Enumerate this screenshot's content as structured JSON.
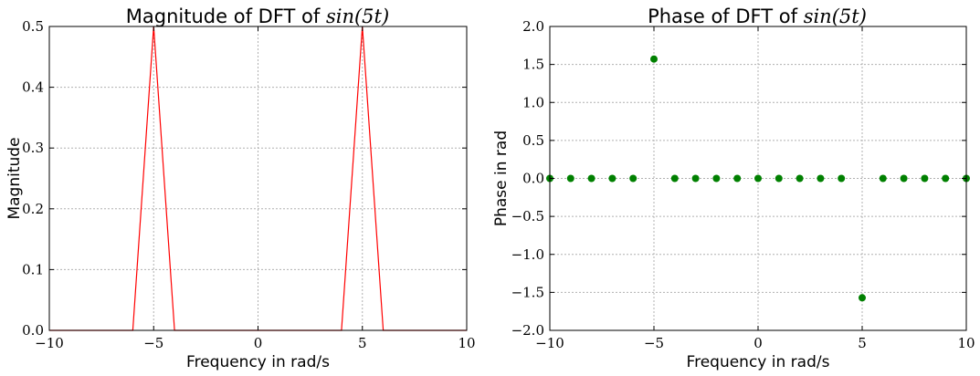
{
  "chart_data": [
    {
      "type": "line",
      "title": "Magnitude of DFT of",
      "title_math": "sin(5t)",
      "xlabel": "Frequency in rad/s",
      "ylabel": "Magnitude",
      "xlim": [
        -10,
        10
      ],
      "ylim": [
        0,
        0.5
      ],
      "xticks": [
        -10,
        -5,
        0,
        5,
        10
      ],
      "yticks": [
        0.0,
        0.1,
        0.2,
        0.3,
        0.4,
        0.5
      ],
      "xtick_labels": [
        "−10",
        "−5",
        "0",
        "5",
        "10"
      ],
      "ytick_labels": [
        "0.0",
        "0.1",
        "0.2",
        "0.3",
        "0.4",
        "0.5"
      ],
      "grid": true,
      "color": "#ff0000",
      "x": [
        -10,
        -9,
        -8,
        -7,
        -6,
        -5,
        -4,
        -3,
        -2,
        -1,
        0,
        1,
        2,
        3,
        4,
        5,
        6,
        7,
        8,
        9,
        10
      ],
      "y": [
        0,
        0,
        0,
        0,
        0,
        0.5,
        0,
        0,
        0,
        0,
        0,
        0,
        0,
        0,
        0,
        0.5,
        0,
        0,
        0,
        0,
        0
      ]
    },
    {
      "type": "scatter",
      "title": "Phase of DFT of",
      "title_math": "sin(5t)",
      "xlabel": "Frequency in rad/s",
      "ylabel": "Phase in rad",
      "xlim": [
        -10,
        10
      ],
      "ylim": [
        -2.0,
        2.0
      ],
      "xticks": [
        -10,
        -5,
        0,
        5,
        10
      ],
      "yticks": [
        -2.0,
        -1.5,
        -1.0,
        -0.5,
        0.0,
        0.5,
        1.0,
        1.5,
        2.0
      ],
      "xtick_labels": [
        "−10",
        "−5",
        "0",
        "5",
        "10"
      ],
      "ytick_labels": [
        "−2.0",
        "−1.5",
        "−1.0",
        "−0.5",
        "0.0",
        "0.5",
        "1.0",
        "1.5",
        "2.0"
      ],
      "grid": true,
      "color": "#008000",
      "x": [
        -10,
        -9,
        -8,
        -7,
        -6,
        -5,
        -4,
        -3,
        -2,
        -1,
        0,
        1,
        2,
        3,
        4,
        5,
        6,
        7,
        8,
        9,
        10
      ],
      "y": [
        0,
        0,
        0,
        0,
        0,
        1.5708,
        0,
        0,
        0,
        0,
        0,
        0,
        0,
        0,
        0,
        -1.5708,
        0,
        0,
        0,
        0,
        0
      ]
    }
  ]
}
